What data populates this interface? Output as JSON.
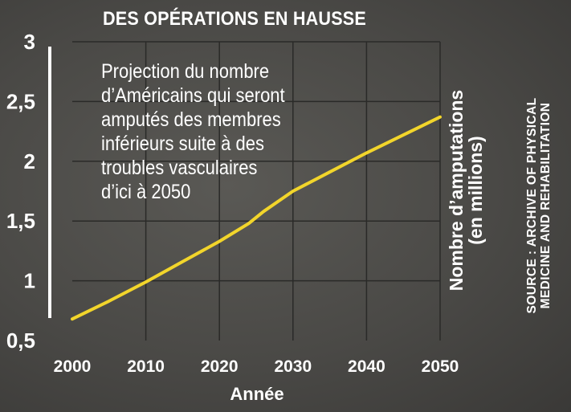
{
  "chart_data": {
    "type": "line",
    "title": "DES OPÉRATIONS EN HAUSSE",
    "annotation": "Projection du nombre\nd’Américains qui seront\namputés des membres\ninférieurs suite à des\ntroubles vasculaires\nd’ici à 2050",
    "xlabel": "Année",
    "ylabel_line1": "Nombre d’amputations",
    "ylabel_line2": "(en millions)",
    "source_line1": "SOURCE : ARCHIVE OF PHYSICAL",
    "source_line2": "MEDICINE AND REHABILITATION",
    "xlim": [
      2000,
      2050
    ],
    "ylim": [
      0.5,
      3
    ],
    "x_ticks": [
      2000,
      2010,
      2020,
      2030,
      2040,
      2050
    ],
    "x_tick_labels": [
      "2000",
      "2010",
      "2020",
      "2030",
      "2040",
      "2050"
    ],
    "y_ticks": [
      0.5,
      1,
      1.5,
      2,
      2.5,
      3
    ],
    "y_tick_labels": [
      "0,5",
      "1",
      "1,5",
      "2",
      "2,5",
      "3"
    ],
    "grid": true,
    "series": [
      {
        "name": "Nombre d’amputations",
        "color": "#f2d52b",
        "x": [
          2000,
          2005,
          2010,
          2015,
          2020,
          2024,
          2026,
          2030,
          2035,
          2040,
          2045,
          2050
        ],
        "values": [
          0.68,
          0.83,
          0.99,
          1.16,
          1.33,
          1.48,
          1.58,
          1.75,
          1.91,
          2.07,
          2.22,
          2.37
        ]
      }
    ]
  }
}
